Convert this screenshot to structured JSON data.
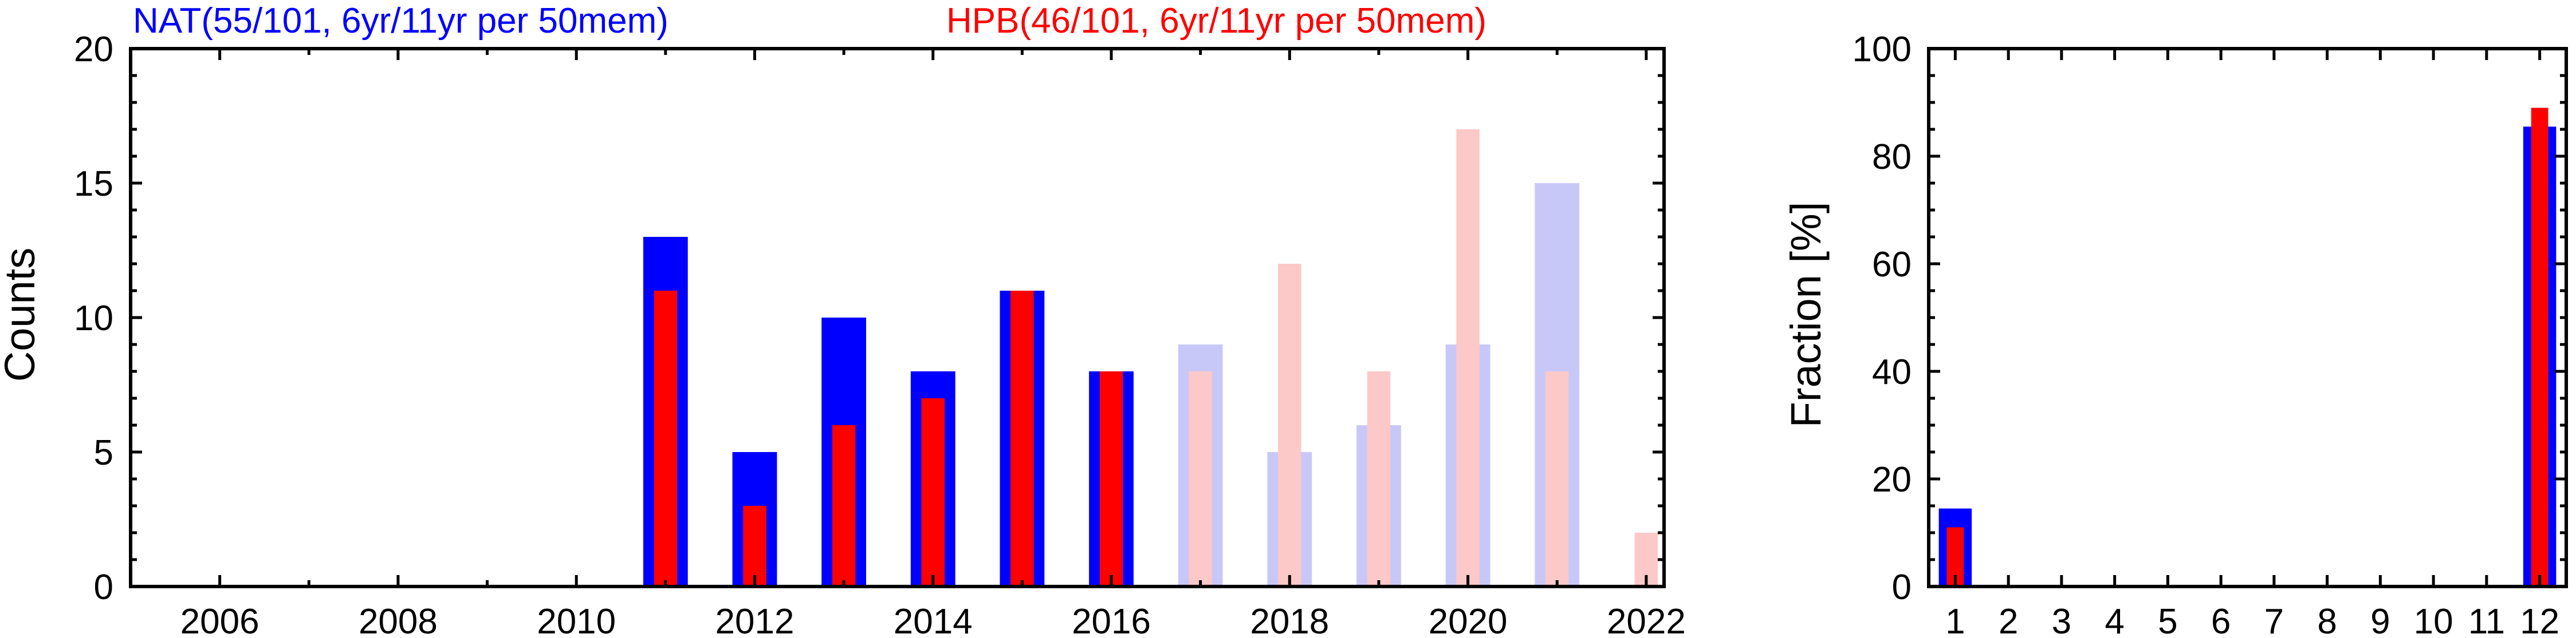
{
  "chart_data": [
    {
      "type": "bar",
      "ylabel": "Counts",
      "xlabel": "",
      "xlim": [
        2005,
        2022.2
      ],
      "ylim": [
        0,
        20
      ],
      "xticks": [
        2006,
        2008,
        2010,
        2012,
        2014,
        2016,
        2018,
        2020,
        2022
      ],
      "yticks": [
        0,
        5,
        10,
        15,
        20
      ],
      "grid": false,
      "titles": [
        {
          "text": "NAT(55/101, 6yr/11yr per 50mem)",
          "color": "#0000ff"
        },
        {
          "text": "HPB(46/101, 6yr/11yr per 50mem)",
          "color": "#ff0000"
        }
      ],
      "x": [
        2011,
        2012,
        2013,
        2014,
        2015,
        2016,
        2017,
        2018,
        2019,
        2020,
        2021,
        2022
      ],
      "series": [
        {
          "name": "NAT",
          "color": "#0000ff",
          "light_color": "#c8c8f8",
          "values": [
            13,
            5,
            10,
            8,
            11,
            8,
            9,
            5,
            6,
            9,
            15,
            0
          ],
          "light_from_index": 6
        },
        {
          "name": "HPB",
          "color": "#ff0000",
          "light_color": "#fcc8c8",
          "values": [
            11,
            3,
            6,
            7,
            11,
            8,
            8,
            12,
            8,
            17,
            8,
            2
          ],
          "light_from_index": 6
        }
      ]
    },
    {
      "type": "bar",
      "ylabel": "Fraction [%]",
      "xlabel": "",
      "xlim": [
        0.5,
        12.5
      ],
      "ylim": [
        0,
        100
      ],
      "yticks": [
        0,
        20,
        40,
        60,
        80,
        100
      ],
      "grid": false,
      "categories": [
        "1",
        "2",
        "3",
        "4",
        "5",
        "6",
        "7",
        "8",
        "9",
        "10",
        "11",
        "12"
      ],
      "series": [
        {
          "name": "NAT",
          "color": "#0000ff",
          "values": [
            14.5,
            0,
            0,
            0,
            0,
            0,
            0,
            0,
            0,
            0,
            0,
            85.5
          ]
        },
        {
          "name": "HPB",
          "color": "#ff0000",
          "values": [
            11,
            0,
            0,
            0,
            0,
            0,
            0,
            0,
            0,
            0,
            0,
            89
          ]
        }
      ]
    }
  ]
}
